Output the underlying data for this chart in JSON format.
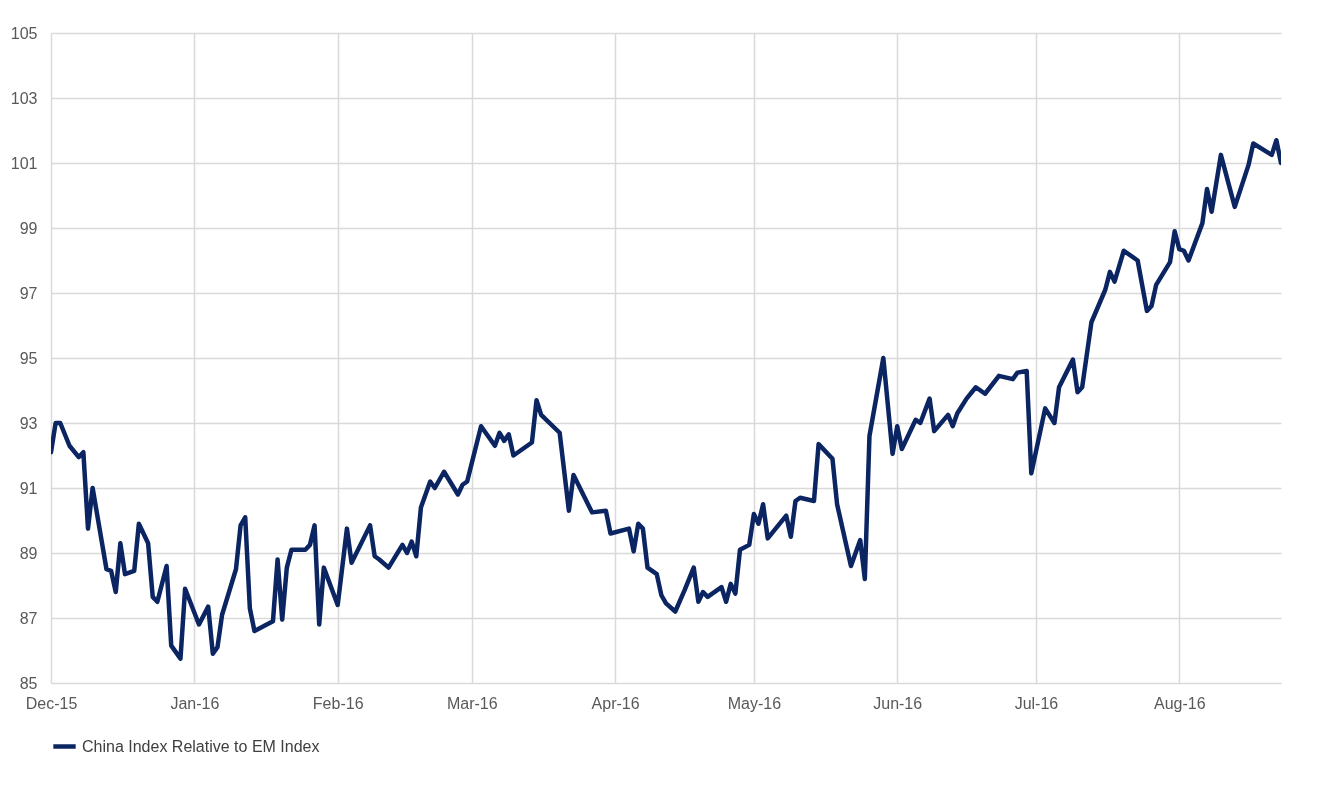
{
  "chart_data": {
    "type": "line",
    "x": [
      "2015-12-01",
      "2015-12-02",
      "2015-12-03",
      "2015-12-05",
      "2015-12-07",
      "2015-12-08",
      "2015-12-09",
      "2015-12-10",
      "2015-12-13",
      "2015-12-14",
      "2015-12-15",
      "2015-12-16",
      "2015-12-17",
      "2015-12-19",
      "2015-12-20",
      "2015-12-22",
      "2015-12-23",
      "2015-12-24",
      "2015-12-26",
      "2015-12-27",
      "2015-12-29",
      "2015-12-30",
      "2016-01-02",
      "2016-01-04",
      "2016-01-05",
      "2016-01-06",
      "2016-01-07",
      "2016-01-10",
      "2016-01-11",
      "2016-01-12",
      "2016-01-13",
      "2016-01-14",
      "2016-01-18",
      "2016-01-19",
      "2016-01-20",
      "2016-01-21",
      "2016-01-22",
      "2016-01-25",
      "2016-01-26",
      "2016-01-27",
      "2016-01-28",
      "2016-01-29",
      "2016-02-01",
      "2016-02-03",
      "2016-02-04",
      "2016-02-08",
      "2016-02-09",
      "2016-02-10",
      "2016-02-12",
      "2016-02-15",
      "2016-02-16",
      "2016-02-17",
      "2016-02-18",
      "2016-02-19",
      "2016-02-21",
      "2016-02-22",
      "2016-02-24",
      "2016-02-27",
      "2016-02-28",
      "2016-02-29",
      "2016-03-03",
      "2016-03-06",
      "2016-03-07",
      "2016-03-08",
      "2016-03-09",
      "2016-03-10",
      "2016-03-14",
      "2016-03-15",
      "2016-03-16",
      "2016-03-20",
      "2016-03-22",
      "2016-03-23",
      "2016-03-27",
      "2016-03-30",
      "2016-03-31",
      "2016-04-04",
      "2016-04-05",
      "2016-04-06",
      "2016-04-07",
      "2016-04-08",
      "2016-04-10",
      "2016-04-11",
      "2016-04-12",
      "2016-04-14",
      "2016-04-16",
      "2016-04-18",
      "2016-04-19",
      "2016-04-20",
      "2016-04-21",
      "2016-04-24",
      "2016-04-25",
      "2016-04-26",
      "2016-04-27",
      "2016-04-28",
      "2016-04-30",
      "2016-05-01",
      "2016-05-02",
      "2016-05-03",
      "2016-05-04",
      "2016-05-08",
      "2016-05-09",
      "2016-05-10",
      "2016-05-11",
      "2016-05-14",
      "2016-05-15",
      "2016-05-18",
      "2016-05-19",
      "2016-05-22",
      "2016-05-24",
      "2016-05-25",
      "2016-05-26",
      "2016-05-29",
      "2016-05-31",
      "2016-06-01",
      "2016-06-02",
      "2016-06-05",
      "2016-06-06",
      "2016-06-08",
      "2016-06-09",
      "2016-06-12",
      "2016-06-13",
      "2016-06-14",
      "2016-06-16",
      "2016-06-18",
      "2016-06-20",
      "2016-06-23",
      "2016-06-26",
      "2016-06-27",
      "2016-06-29",
      "2016-06-30",
      "2016-07-03",
      "2016-07-05",
      "2016-07-06",
      "2016-07-09",
      "2016-07-10",
      "2016-07-11",
      "2016-07-13",
      "2016-07-16",
      "2016-07-17",
      "2016-07-18",
      "2016-07-20",
      "2016-07-23",
      "2016-07-25",
      "2016-07-26",
      "2016-07-27",
      "2016-07-30",
      "2016-07-31",
      "2016-08-01",
      "2016-08-02",
      "2016-08-03",
      "2016-08-06",
      "2016-08-07",
      "2016-08-08",
      "2016-08-10",
      "2016-08-13",
      "2016-08-16",
      "2016-08-17",
      "2016-08-21",
      "2016-08-22",
      "2016-08-23"
    ],
    "series": [
      {
        "name": "China Index Relative to EM Index",
        "color": "#0b2462",
        "values": [
          92.1,
          93.0,
          93.0,
          92.3,
          91.95,
          92.1,
          89.75,
          91.0,
          88.5,
          88.45,
          87.8,
          89.3,
          88.35,
          88.45,
          89.9,
          89.3,
          87.65,
          87.5,
          88.6,
          86.15,
          85.75,
          87.9,
          86.8,
          87.35,
          85.9,
          86.1,
          87.1,
          88.5,
          89.85,
          90.1,
          87.3,
          86.6,
          86.9,
          88.8,
          86.95,
          88.55,
          89.1,
          89.1,
          89.25,
          89.85,
          86.8,
          88.55,
          87.4,
          89.75,
          88.7,
          89.85,
          88.9,
          88.8,
          88.55,
          89.25,
          89.0,
          89.35,
          88.9,
          90.4,
          91.2,
          91.0,
          91.5,
          90.8,
          91.1,
          91.2,
          92.9,
          92.3,
          92.7,
          92.45,
          92.65,
          92.0,
          92.4,
          93.7,
          93.25,
          92.7,
          90.3,
          91.4,
          90.25,
          90.3,
          89.6,
          89.75,
          89.05,
          89.9,
          89.75,
          88.55,
          88.35,
          87.7,
          87.45,
          87.2,
          87.85,
          88.55,
          87.5,
          87.8,
          87.65,
          87.95,
          87.5,
          88.05,
          87.75,
          89.1,
          89.25,
          90.2,
          89.9,
          90.5,
          89.45,
          90.15,
          89.5,
          90.6,
          90.7,
          90.6,
          92.35,
          91.9,
          90.5,
          88.6,
          89.4,
          88.2,
          92.6,
          95.0,
          92.05,
          92.9,
          92.2,
          93.1,
          93.0,
          93.75,
          92.75,
          93.25,
          92.9,
          93.3,
          93.75,
          94.1,
          93.9,
          94.45,
          94.35,
          94.55,
          94.6,
          91.45,
          93.45,
          93.0,
          94.1,
          94.95,
          93.95,
          94.1,
          96.1,
          97.1,
          97.65,
          97.35,
          98.3,
          98.0,
          96.45,
          96.6,
          97.25,
          97.95,
          98.9,
          98.35,
          98.3,
          98.0,
          99.15,
          100.2,
          99.5,
          101.25,
          99.65,
          100.95,
          101.6,
          101.25,
          101.7,
          101.0
        ]
      }
    ],
    "xlim": [
      "2015-12-01",
      "2016-08-23"
    ],
    "xticks": [
      {
        "value": "2015-12-01",
        "label": "Dec-15"
      },
      {
        "value": "2016-01-01",
        "label": "Jan-16"
      },
      {
        "value": "2016-02-01",
        "label": "Feb-16"
      },
      {
        "value": "2016-03-01",
        "label": "Mar-16"
      },
      {
        "value": "2016-04-01",
        "label": "Apr-16"
      },
      {
        "value": "2016-05-01",
        "label": "May-16"
      },
      {
        "value": "2016-06-01",
        "label": "Jun-16"
      },
      {
        "value": "2016-07-01",
        "label": "Jul-16"
      },
      {
        "value": "2016-08-01",
        "label": "Aug-16"
      }
    ],
    "ylim": [
      85,
      105
    ],
    "yticks": [
      85,
      87,
      89,
      91,
      93,
      95,
      97,
      99,
      101,
      103,
      105
    ],
    "grid": true,
    "legend": "bottom",
    "marker": "none",
    "line_style": "solid"
  }
}
